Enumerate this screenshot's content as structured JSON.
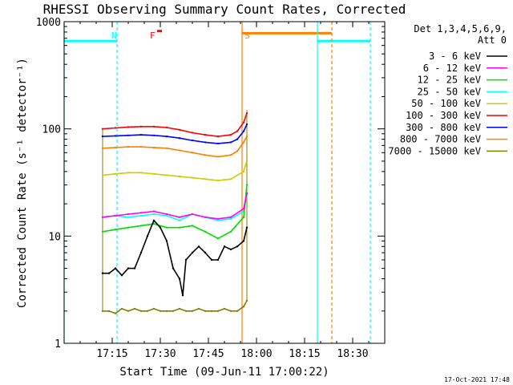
{
  "chart_data": {
    "type": "line",
    "title": "RHESSI Observing Summary Count Rates, Corrected",
    "xlabel": "Start Time (09-Jun-11 17:00:22)",
    "ylabel": "Corrected Count Rate (s⁻¹ detector⁻¹)",
    "y_scale": "log",
    "xlim_minutes": [
      0,
      100
    ],
    "ylim": [
      1,
      1000
    ],
    "x_ticks": [
      {
        "minute": 15,
        "label": "17:15"
      },
      {
        "minute": 30,
        "label": "17:30"
      },
      {
        "minute": 45,
        "label": "17:45"
      },
      {
        "minute": 60,
        "label": "18:00"
      },
      {
        "minute": 75,
        "label": "18:15"
      },
      {
        "minute": 90,
        "label": "18:30"
      }
    ],
    "y_ticks": [
      {
        "value": 1,
        "label": "1"
      },
      {
        "value": 10,
        "label": "10"
      },
      {
        "value": 100,
        "label": "100"
      },
      {
        "value": 1000,
        "label": "1000"
      }
    ],
    "legend": {
      "placement": "top-right",
      "header": [
        "Det 1,3,4,5,6,9,",
        "Att 0"
      ]
    },
    "series": [
      {
        "name": "3 - 6 keV",
        "color": "#000000",
        "x": [
          12,
          14,
          16,
          18,
          20,
          22,
          24,
          26,
          28,
          30,
          32,
          34,
          36,
          37,
          38,
          40,
          42,
          44,
          46,
          48,
          50,
          52,
          54,
          56,
          57
        ],
        "y": [
          4.5,
          4.5,
          5,
          4.3,
          5,
          5,
          7,
          10,
          14,
          12,
          9,
          5,
          4,
          2.8,
          6,
          7,
          8,
          7,
          6,
          6,
          8,
          7.5,
          8,
          9,
          12
        ]
      },
      {
        "name": "6 - 12 keV",
        "color": "#ff00ff",
        "x": [
          12,
          16,
          20,
          24,
          28,
          32,
          36,
          40,
          44,
          48,
          52,
          56,
          57
        ],
        "y": [
          15,
          15.5,
          16,
          16.5,
          17,
          16,
          15,
          16,
          15,
          14.5,
          15,
          18,
          25
        ]
      },
      {
        "name": "12 - 25 keV",
        "color": "#00dd00",
        "x": [
          12,
          16,
          20,
          24,
          28,
          32,
          36,
          40,
          44,
          48,
          52,
          56,
          57
        ],
        "y": [
          11,
          11.5,
          12,
          12.5,
          13,
          12,
          12,
          12.5,
          11,
          9.5,
          11,
          15,
          30
        ]
      },
      {
        "name": "25 - 50 keV",
        "color": "#00ffff",
        "x": [
          12,
          16,
          20,
          24,
          28,
          32,
          36,
          40,
          44,
          48,
          52,
          56,
          57
        ],
        "y": [
          15,
          15.5,
          15,
          15.5,
          16,
          15.5,
          14,
          16,
          15,
          14,
          14.5,
          17,
          24
        ]
      },
      {
        "name": "50 - 100 keV",
        "color": "#cccc00",
        "x": [
          12,
          16,
          20,
          24,
          28,
          32,
          36,
          40,
          44,
          48,
          52,
          56,
          57
        ],
        "y": [
          37,
          38,
          39,
          39,
          38,
          37,
          36,
          35,
          34,
          33,
          34,
          40,
          50
        ]
      },
      {
        "name": "100 - 300 keV",
        "color": "#ff0000",
        "x": [
          12,
          16,
          20,
          24,
          28,
          32,
          36,
          40,
          44,
          48,
          52,
          54,
          56,
          57
        ],
        "y": [
          100,
          102,
          104,
          105,
          105,
          103,
          98,
          92,
          88,
          85,
          88,
          95,
          115,
          140
        ]
      },
      {
        "name": "300 - 800 keV",
        "color": "#0000ff",
        "x": [
          12,
          16,
          20,
          24,
          28,
          32,
          36,
          40,
          44,
          48,
          52,
          54,
          56,
          57
        ],
        "y": [
          85,
          86,
          87,
          88,
          87,
          85,
          82,
          78,
          75,
          73,
          75,
          80,
          95,
          110
        ]
      },
      {
        "name": "800 - 7000 keV",
        "color": "#ff8000",
        "x": [
          12,
          16,
          20,
          24,
          28,
          32,
          36,
          40,
          44,
          48,
          52,
          54,
          56,
          57
        ],
        "y": [
          66,
          67,
          68,
          68,
          67,
          66,
          63,
          60,
          57,
          55,
          57,
          62,
          75,
          85
        ]
      },
      {
        "name": "7000 - 15000 keV",
        "color": "#808000",
        "x": [
          12,
          14,
          16,
          18,
          20,
          22,
          24,
          26,
          28,
          30,
          32,
          34,
          36,
          38,
          40,
          42,
          44,
          46,
          48,
          50,
          52,
          54,
          56,
          57
        ],
        "y": [
          2,
          2,
          1.9,
          2.1,
          2,
          2.1,
          2,
          2,
          2.1,
          2,
          2,
          2,
          2.1,
          2,
          2,
          2.1,
          2,
          2,
          2,
          2.1,
          2,
          2,
          2.2,
          2.5
        ]
      }
    ],
    "annotations": [
      {
        "label": "N",
        "minute": 16,
        "color": "#00ffff"
      },
      {
        "label": "F",
        "minute": 28,
        "color": "#ff0000"
      },
      {
        "label": "S",
        "minute": 57.5,
        "color": "#ff8000"
      }
    ],
    "footer_timestamp": "17-Oct-2021 17:48"
  }
}
